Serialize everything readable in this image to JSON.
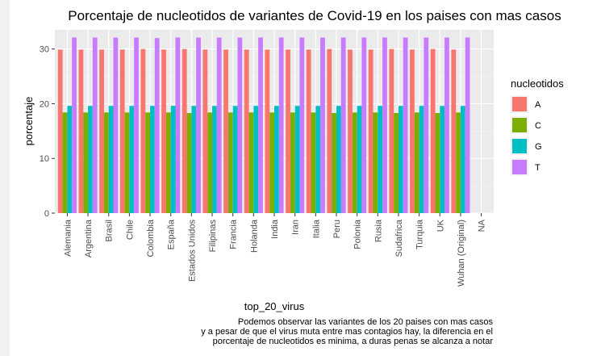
{
  "chart_data": {
    "type": "bar",
    "title": "Porcentaje de nucleotidos de variantes de Covid-19 en los paises con mas casos",
    "xlabel": "top_20_virus",
    "ylabel": "porcentaje",
    "ylim": [
      0,
      33.5
    ],
    "yticks": [
      0,
      10,
      20,
      30
    ],
    "grid": true,
    "legend": {
      "title": "nucleotidos",
      "position": "right"
    },
    "categories": [
      "Alemania",
      "Argentina",
      "Brasil",
      "Chile",
      "Colombia",
      "España",
      "Estados Unidos",
      "Filipinas",
      "Francia",
      "Holanda",
      "India",
      "Iran",
      "Italia",
      "Peru",
      "Polonia",
      "Rusia",
      "Sudafrica",
      "Turquia",
      "UK",
      "Wuhan (Original)",
      "NA"
    ],
    "series": [
      {
        "name": "A",
        "color": "#F8766D",
        "values": [
          29.9,
          29.9,
          29.9,
          29.9,
          30.0,
          29.9,
          30.0,
          29.9,
          29.9,
          29.9,
          29.9,
          29.9,
          29.9,
          30.0,
          29.9,
          29.9,
          30.0,
          29.9,
          30.0,
          29.9,
          null
        ]
      },
      {
        "name": "C",
        "color": "#7CAE00",
        "values": [
          18.4,
          18.4,
          18.4,
          18.4,
          18.4,
          18.4,
          18.3,
          18.4,
          18.4,
          18.4,
          18.4,
          18.4,
          18.4,
          18.3,
          18.4,
          18.4,
          18.3,
          18.4,
          18.3,
          18.4,
          null
        ]
      },
      {
        "name": "G",
        "color": "#00BFC4",
        "values": [
          19.6,
          19.6,
          19.6,
          19.6,
          19.6,
          19.6,
          19.6,
          19.6,
          19.6,
          19.6,
          19.6,
          19.6,
          19.6,
          19.6,
          19.6,
          19.6,
          19.6,
          19.6,
          19.6,
          19.6,
          null
        ]
      },
      {
        "name": "T",
        "color": "#C77CFF",
        "values": [
          32.1,
          32.1,
          32.1,
          32.1,
          32.0,
          32.1,
          32.1,
          32.1,
          32.1,
          32.1,
          32.1,
          32.1,
          32.1,
          32.1,
          32.1,
          32.1,
          32.1,
          32.1,
          32.1,
          32.1,
          null
        ]
      }
    ]
  },
  "caption": {
    "lines": [
      "Podemos observar las variantes de los 20 paises con mas casos",
      "y a pesar de que el virus muta entre mas contagios hay, la diferencia en el",
      "porcentaje de nucleotidos es minima, a duras penas se alcanza a notar"
    ]
  }
}
